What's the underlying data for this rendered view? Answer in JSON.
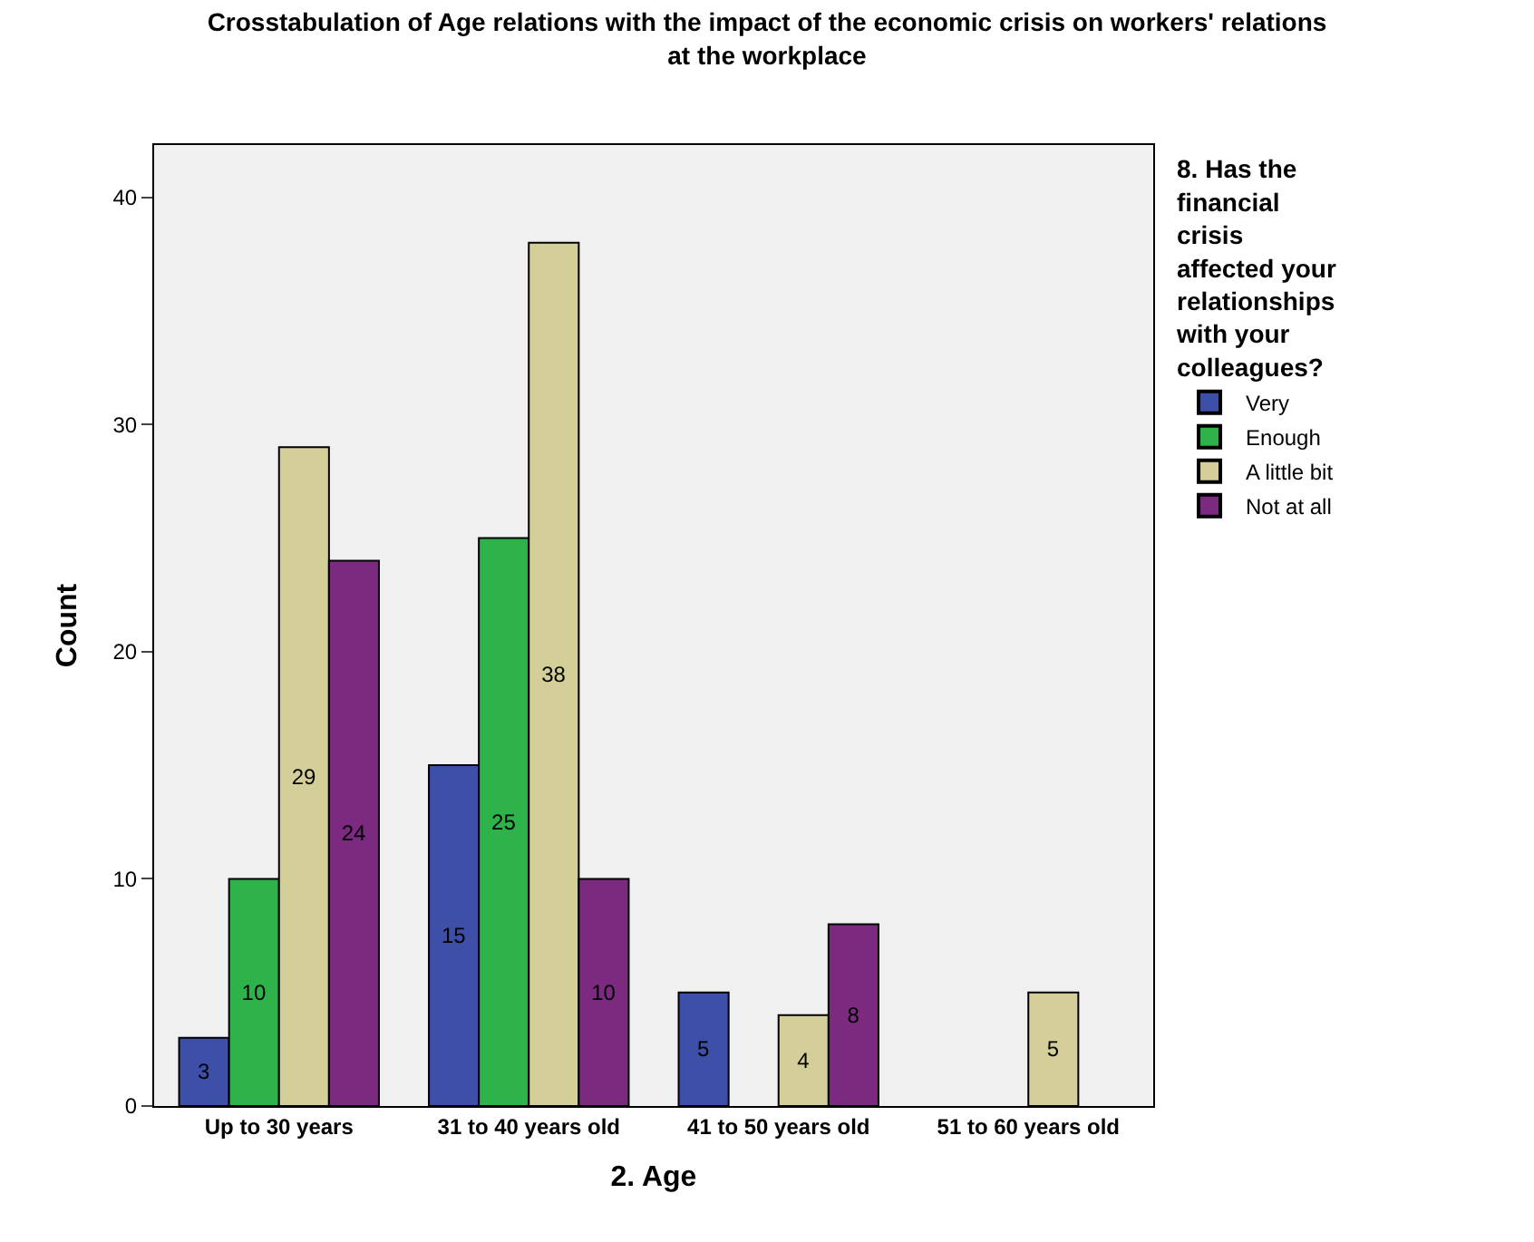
{
  "chart_data": {
    "type": "bar",
    "title": "Crosstabulation of Age relations with the impact of the economic crisis on workers' relations at the workplace",
    "xlabel": "2. Age",
    "ylabel": "Count",
    "legend_title": "8. Has the financial crisis affected your relationships with your colleagues?",
    "categories": [
      "Up to 30 years",
      "31 to 40 years old",
      "41 to 50 years old",
      "51 to 60 years old"
    ],
    "series": [
      {
        "name": "Very",
        "color": "#3d4fa6",
        "values": [
          3,
          15,
          5,
          null
        ]
      },
      {
        "name": "Enough",
        "color": "#2db34a",
        "values": [
          10,
          25,
          null,
          null
        ]
      },
      {
        "name": "A little bit",
        "color": "#d4cf98",
        "values": [
          29,
          38,
          4,
          5
        ]
      },
      {
        "name": "Not at all",
        "color": "#7b2a7f",
        "values": [
          24,
          10,
          8,
          null
        ]
      }
    ],
    "ylim": [
      0,
      42.3
    ],
    "yticks": [
      0,
      10,
      20,
      30,
      40
    ],
    "grid": false,
    "legend": "top right",
    "data_labels": true
  }
}
